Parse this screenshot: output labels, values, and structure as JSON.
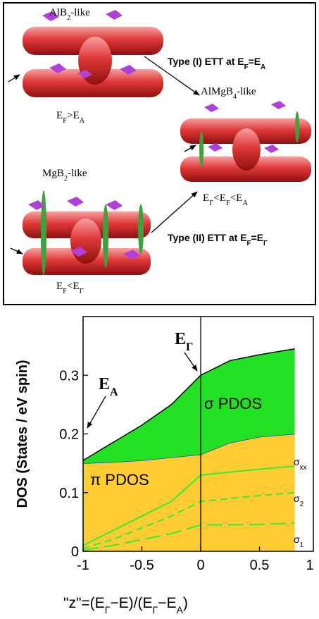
{
  "top_panel": {
    "labels": [
      {
        "parts": [
          {
            "text": "AlB"
          },
          {
            "sub": "2"
          },
          {
            "text": "-like"
          }
        ]
      },
      {
        "parts": [
          {
            "text": "E"
          },
          {
            "sub": "F"
          },
          {
            "text": ">E"
          },
          {
            "sub": "A"
          }
        ]
      },
      {
        "parts": [
          {
            "text": "Type (I) ETT at E"
          },
          {
            "sub": "F"
          },
          {
            "text": "=E"
          },
          {
            "sub": "A"
          }
        ]
      },
      {
        "parts": [
          {
            "text": "AlMgB"
          },
          {
            "sub": "4"
          },
          {
            "text": "-like"
          }
        ]
      },
      {
        "parts": [
          {
            "text": "E"
          },
          {
            "sub": "Γ"
          },
          {
            "text": "<E"
          },
          {
            "sub": "F"
          },
          {
            "text": "<E"
          },
          {
            "sub": "A"
          }
        ]
      },
      {
        "parts": [
          {
            "text": "MgB"
          },
          {
            "sub": "2"
          },
          {
            "text": "-like"
          }
        ]
      },
      {
        "parts": [
          {
            "text": "Type (II) ETT  at E"
          },
          {
            "sub": "F"
          },
          {
            "text": "=E"
          },
          {
            "sub": "Γ"
          }
        ]
      },
      {
        "parts": [
          {
            "text": "E"
          },
          {
            "sub": "F"
          },
          {
            "text": "<E"
          },
          {
            "sub": "Γ"
          }
        ]
      }
    ]
  },
  "chart_data": {
    "type": "area",
    "y_label": "DOS (States / eV spin)",
    "x_label": [
      {
        "text": "\"z\"=(E"
      },
      {
        "sub": "Γ"
      },
      {
        "text": "−E)/(E"
      },
      {
        "sub": "Γ"
      },
      {
        "text": "−E"
      },
      {
        "sub": "A"
      },
      {
        "text": ")"
      }
    ],
    "x": [
      -1,
      -0.75,
      -0.5,
      -0.25,
      0,
      0.25,
      0.5,
      0.8
    ],
    "series": [
      {
        "name": [
          {
            "text": "π PDOS"
          }
        ],
        "kind": "area",
        "color": "#ffcc33",
        "line_color": "#1f3fd0",
        "values": [
          0.15,
          0.152,
          0.155,
          0.16,
          0.165,
          0.185,
          0.195,
          0.2
        ]
      },
      {
        "name": [
          {
            "text": "σ PDOS"
          }
        ],
        "kind": "area",
        "color": "#22e022",
        "line_color": "#000000",
        "values": [
          0.005,
          0.033,
          0.06,
          0.09,
          0.135,
          0.14,
          0.14,
          0.145
        ]
      },
      {
        "name": [
          {
            "text": "σ"
          },
          {
            "sub": "xx"
          }
        ],
        "kind": "line",
        "color": "#33ee33",
        "dash": "none",
        "values": [
          0.01,
          0.035,
          0.06,
          0.085,
          0.13,
          0.135,
          0.14,
          0.145
        ]
      },
      {
        "name": [
          {
            "text": "σ"
          },
          {
            "sub": "2"
          }
        ],
        "kind": "line",
        "color": "#33ee33",
        "dash": "10 6",
        "values": [
          0.005,
          0.02,
          0.04,
          0.06,
          0.085,
          0.09,
          0.095,
          0.1
        ]
      },
      {
        "name": [
          {
            "text": "σ"
          },
          {
            "sub": "1"
          }
        ],
        "kind": "line",
        "color": "#33ee33",
        "dash": "22 8",
        "values": [
          0.002,
          0.01,
          0.02,
          0.03,
          0.045,
          0.045,
          0.046,
          0.048
        ]
      }
    ],
    "annotations": [
      {
        "parts": [
          {
            "text": "E"
          },
          {
            "sub": "A"
          }
        ]
      },
      {
        "parts": [
          {
            "text": "E"
          },
          {
            "sub": "Γ"
          }
        ]
      }
    ],
    "xlim": [
      -1,
      0.958
    ],
    "ylim": [
      0,
      0.4
    ],
    "xticks": [
      -1,
      -0.5,
      0,
      0.5,
      1
    ],
    "yticks": [
      0,
      0.1,
      0.2,
      0.3
    ],
    "vline": 0,
    "grid": false
  }
}
